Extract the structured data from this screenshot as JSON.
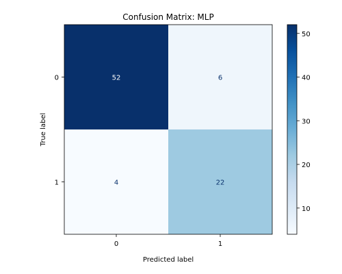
{
  "chart_data": {
    "type": "heatmap",
    "title": "Confusion Matrix: MLP",
    "xlabel": "Predicted label",
    "ylabel": "True label",
    "x_categories": [
      "0",
      "1"
    ],
    "y_categories": [
      "0",
      "1"
    ],
    "values": [
      [
        52,
        6
      ],
      [
        4,
        22
      ]
    ],
    "colormap": "Blues",
    "color_low": "#f7fbff",
    "color_high": "#08306b",
    "vmin": 4,
    "vmax": 52,
    "colorbar_ticks": [
      10,
      20,
      30,
      40,
      50
    ],
    "colorbar_tick_labels": [
      "10",
      "20",
      "30",
      "40",
      "50"
    ],
    "grid": false
  }
}
